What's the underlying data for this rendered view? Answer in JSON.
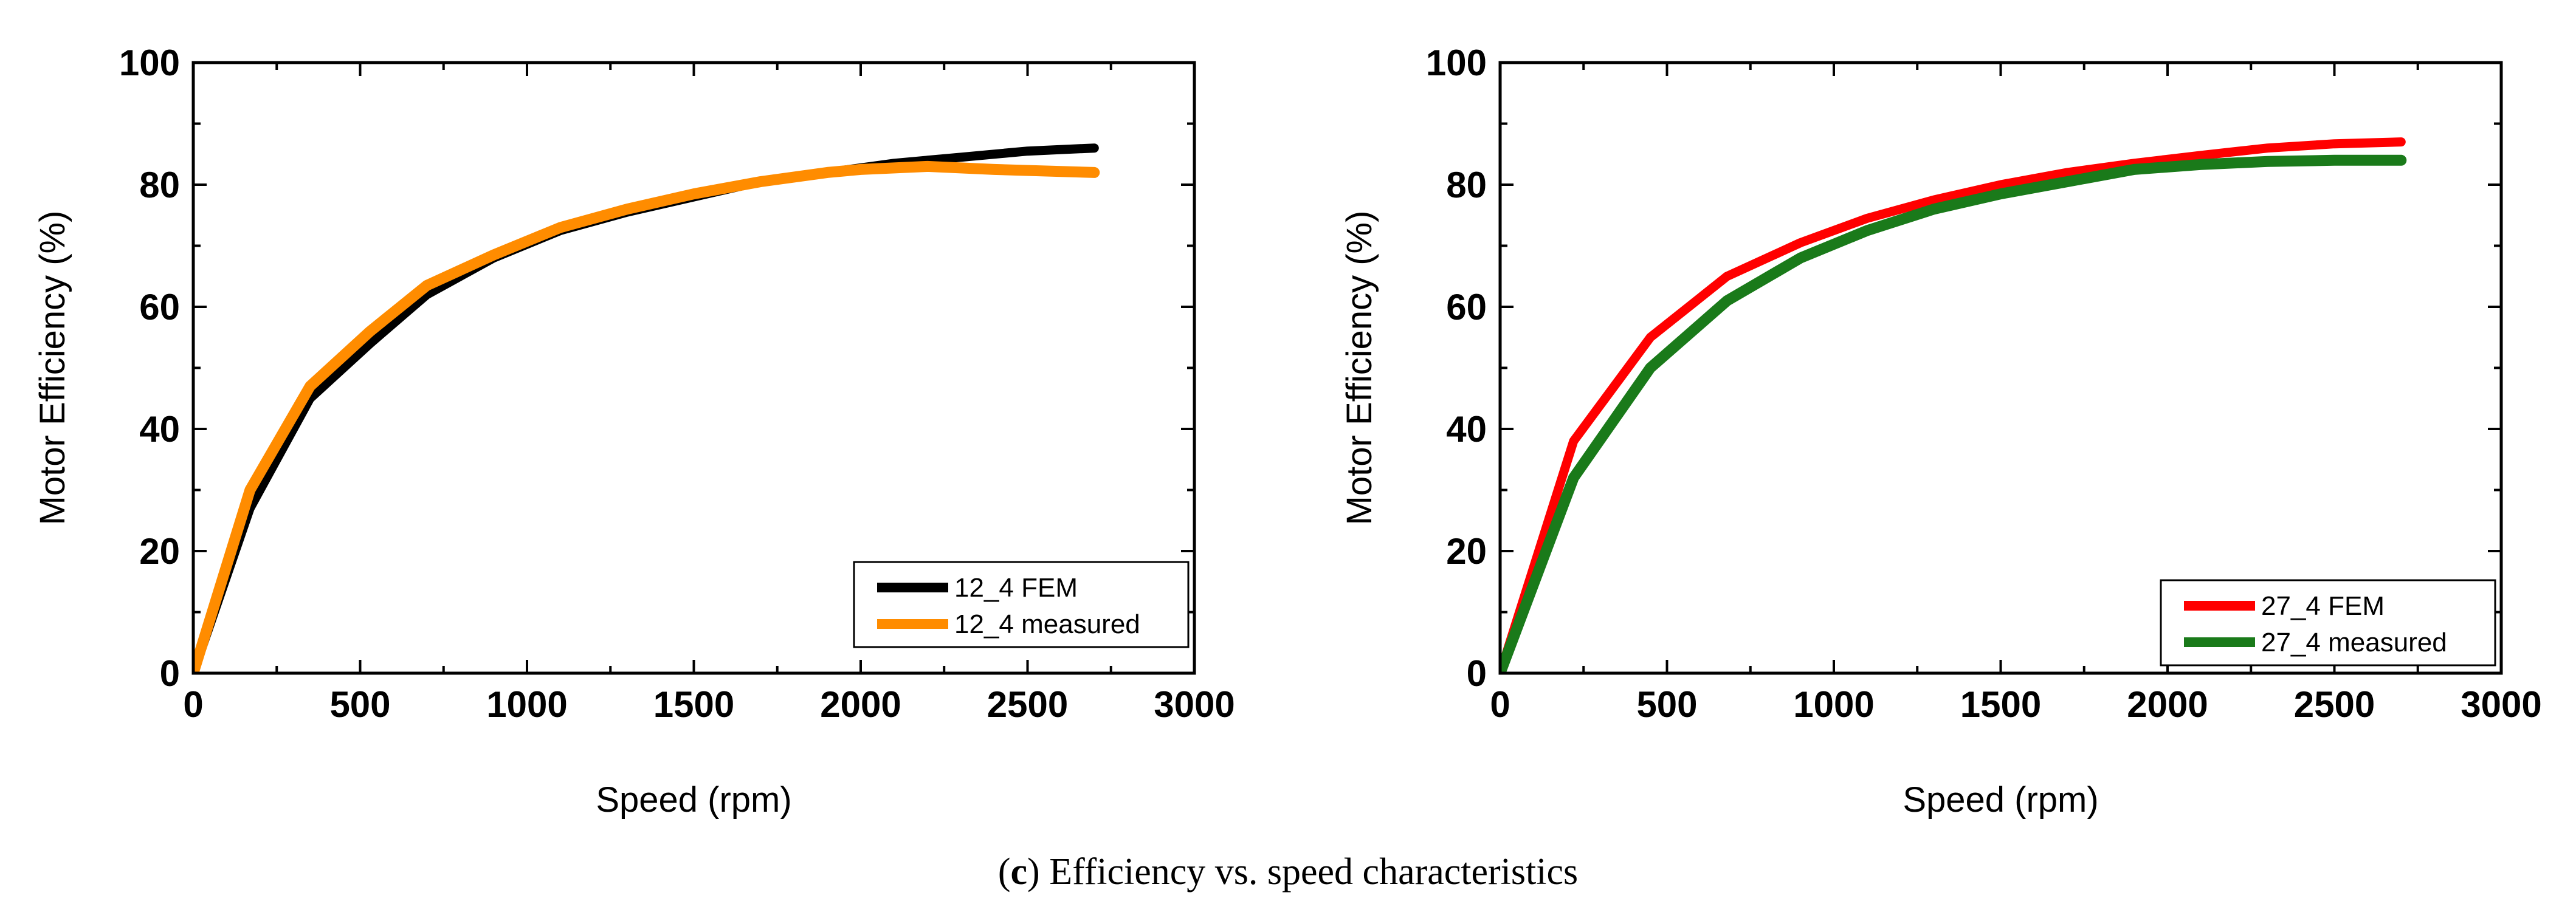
{
  "caption": {
    "open": "(",
    "letter": "c",
    "close": ")",
    "text": " Efficiency vs. speed characteristics"
  },
  "chart_data": [
    {
      "type": "line",
      "title": "",
      "xlabel": "Speed (rpm)",
      "ylabel": "Motor Efficiency (%)",
      "xlim": [
        0,
        3000
      ],
      "ylim": [
        0,
        100
      ],
      "xticks": [
        0,
        500,
        1000,
        1500,
        2000,
        2500,
        3000
      ],
      "yticks": [
        0,
        20,
        40,
        60,
        80,
        100
      ],
      "legend_position": "bottom-right",
      "series": [
        {
          "name": "12_4 FEM",
          "color": "#000000",
          "x": [
            0,
            170,
            350,
            530,
            700,
            900,
            1100,
            1300,
            1500,
            1700,
            1900,
            2100,
            2300,
            2500,
            2700
          ],
          "y": [
            0,
            27,
            45,
            54,
            62,
            68,
            72.5,
            75.5,
            78,
            80.5,
            82,
            83.5,
            84.5,
            85.5,
            86
          ]
        },
        {
          "name": "12_4 measured",
          "color": "#ff8c00",
          "x": [
            0,
            170,
            350,
            530,
            700,
            900,
            1100,
            1300,
            1500,
            1700,
            1900,
            2000,
            2200,
            2400,
            2700
          ],
          "y": [
            0,
            30,
            47,
            56,
            63.5,
            68.5,
            73,
            76,
            78.5,
            80.5,
            82,
            82.5,
            83,
            82.5,
            82
          ]
        }
      ]
    },
    {
      "type": "line",
      "title": "",
      "xlabel": "Speed (rpm)",
      "ylabel": "Motor Efficiency (%)",
      "xlim": [
        0,
        3000
      ],
      "ylim": [
        0,
        100
      ],
      "xticks": [
        0,
        500,
        1000,
        1500,
        2000,
        2500,
        3000
      ],
      "yticks": [
        0,
        20,
        40,
        60,
        80,
        100
      ],
      "legend_position": "bottom-right",
      "series": [
        {
          "name": "27_4 FEM",
          "color": "#ff0000",
          "x": [
            0,
            220,
            450,
            680,
            900,
            1100,
            1300,
            1500,
            1700,
            1900,
            2100,
            2300,
            2500,
            2700
          ],
          "y": [
            0,
            38,
            55,
            65,
            70.5,
            74.5,
            77.5,
            80,
            82,
            83.5,
            84.8,
            86,
            86.7,
            87
          ]
        },
        {
          "name": "27_4 measured",
          "color": "#1a7a1a",
          "x": [
            0,
            220,
            450,
            680,
            900,
            1100,
            1300,
            1500,
            1700,
            1900,
            2100,
            2300,
            2500,
            2700
          ],
          "y": [
            0,
            32,
            50,
            61,
            68,
            72.5,
            76,
            78.5,
            80.5,
            82.5,
            83.3,
            83.8,
            84,
            84
          ]
        }
      ]
    }
  ]
}
